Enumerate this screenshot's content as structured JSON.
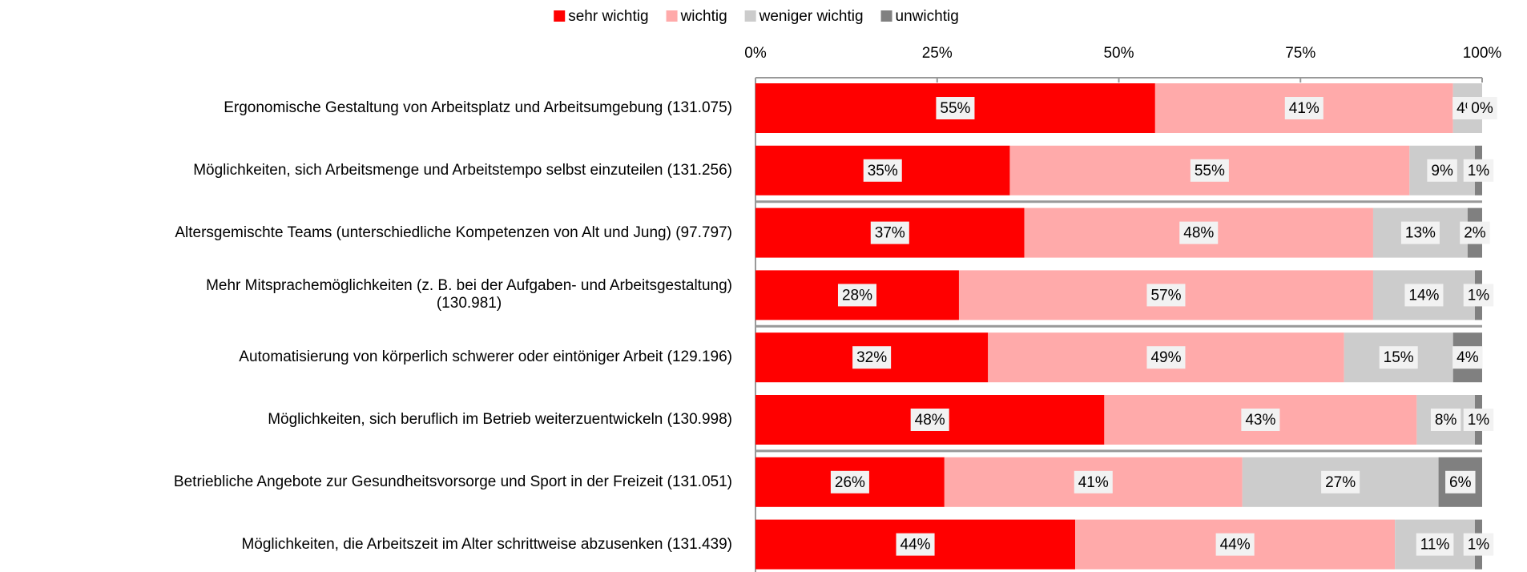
{
  "chart_data": {
    "type": "stacked-barh",
    "categories": [
      "Ergonomische Gestaltung von Arbeitsplatz und Arbeitsumgebung    (131.075)",
      "Möglichkeiten, sich Arbeitsmenge und Arbeitstempo selbst einzuteilen (131.256)",
      "Altersgemischte Teams (unterschiedliche Kompetenzen von Alt und Jung) (97.797)",
      "Mehr Mitsprachemöglichkeiten  (z. B. bei der Aufgaben- und Arbeitsgestaltung)\n(130.981)",
      "Automatisierung von körperlich schwerer oder eintöniger Arbeit (129.196)",
      "Möglichkeiten, sich beruflich im Betrieb weiterzuentwickeln (130.998)",
      "Betriebliche Angebote zur Gesundheitsvorsorge und Sport in der Freizeit (131.051)",
      "Möglichkeiten, die Arbeitszeit im Alter schrittweise abzusenken (131.439)"
    ],
    "series": [
      {
        "name": "sehr wichtig",
        "color": "#ff0000",
        "values": [
          55,
          35,
          37,
          28,
          32,
          48,
          26,
          44
        ],
        "value_labels": [
          "55%",
          "35%",
          "37%",
          "28%",
          "32%",
          "48%",
          "26%",
          "44%"
        ]
      },
      {
        "name": "wichtig",
        "color": "#ffaaaa",
        "values": [
          41,
          55,
          48,
          57,
          49,
          43,
          41,
          44
        ],
        "value_labels": [
          "41%",
          "55%",
          "48%",
          "57%",
          "49%",
          "43%",
          "41%",
          "44%"
        ]
      },
      {
        "name": "weniger wichtig",
        "color": "#cccccc",
        "values": [
          4,
          9,
          13,
          14,
          15,
          8,
          27,
          11
        ],
        "value_labels": [
          "4%",
          "9%",
          "13%",
          "14%",
          "15%",
          "8%",
          "27%",
          "11%"
        ]
      },
      {
        "name": "unwichtig",
        "color": "#808080",
        "values": [
          0,
          1,
          2,
          1,
          4,
          1,
          6,
          1
        ],
        "value_labels": [
          "0%",
          "1%",
          "2%",
          "1%",
          "4%",
          "1%",
          "6%",
          "1%"
        ]
      }
    ],
    "xlim": [
      0,
      100
    ],
    "xticks": [
      {
        "value": 0,
        "label": "0%"
      },
      {
        "value": 25,
        "label": "25%"
      },
      {
        "value": 50,
        "label": "50%"
      },
      {
        "value": 75,
        "label": "75%"
      },
      {
        "value": 100,
        "label": "100%"
      }
    ],
    "legend": "top"
  }
}
